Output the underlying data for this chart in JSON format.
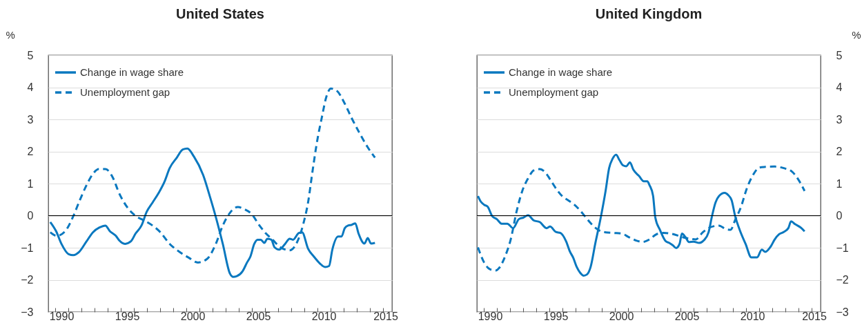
{
  "chart_data": [
    {
      "type": "line",
      "title": "United States",
      "ylabel": "%",
      "xlim": [
        1989.5,
        2015.7
      ],
      "ylim": [
        -3,
        5
      ],
      "yticks": [
        -3,
        -2,
        -1,
        0,
        1,
        2,
        3,
        4,
        5
      ],
      "xticks": [
        {
          "value": 1990,
          "label": null
        },
        {
          "value": 1991,
          "label": null
        },
        {
          "value": 1992,
          "label": null
        },
        {
          "value": 1993,
          "label": null
        },
        {
          "value": 1994,
          "label": null
        },
        {
          "value": 1995,
          "label": null
        },
        {
          "value": 1996,
          "label": null
        },
        {
          "value": 1997,
          "label": null
        },
        {
          "value": 1998,
          "label": null
        },
        {
          "value": 1999,
          "label": null
        },
        {
          "value": 2000,
          "label": null
        },
        {
          "value": 2001,
          "label": null
        },
        {
          "value": 2002,
          "label": null
        },
        {
          "value": 2003,
          "label": null
        },
        {
          "value": 2004,
          "label": null
        },
        {
          "value": 2005,
          "label": null
        },
        {
          "value": 2006,
          "label": null
        },
        {
          "value": 2007,
          "label": null
        },
        {
          "value": 2008,
          "label": null
        },
        {
          "value": 2009,
          "label": null
        },
        {
          "value": 2010,
          "label": null
        },
        {
          "value": 2011,
          "label": null
        },
        {
          "value": 2012,
          "label": null
        },
        {
          "value": 2013,
          "label": null
        },
        {
          "value": 2014,
          "label": null
        },
        {
          "value": 2015,
          "label": null
        },
        {
          "value": 1990.5,
          "label": "1990"
        },
        {
          "value": 1995.5,
          "label": "1995"
        },
        {
          "value": 2000.5,
          "label": "2000"
        },
        {
          "value": 2005.5,
          "label": "2005"
        },
        {
          "value": 2010.5,
          "label": "2010"
        },
        {
          "value": 2015.2,
          "label": "2015"
        }
      ],
      "grid": "y",
      "legend": "top left",
      "ref_lines": [
        {
          "axis": "y",
          "value": 0,
          "color": "#000000"
        }
      ],
      "series": [
        {
          "name": "Change in wage share",
          "color": "#0a78bf",
          "line_style": "solid",
          "x": [
            1989.65,
            1990.1,
            1990.5,
            1991.05,
            1991.4,
            1991.85,
            1992.4,
            1992.9,
            1993.4,
            1993.85,
            1994.2,
            1994.65,
            1994.9,
            1995.35,
            1995.8,
            1996.15,
            1996.6,
            1997.0,
            1997.45,
            1997.9,
            1998.35,
            1998.75,
            1999.3,
            1999.75,
            2000.1,
            2000.6,
            2001.3,
            2001.85,
            2002.3,
            2002.8,
            2003.35,
            2003.6,
            2003.85,
            2004.3,
            2004.65,
            2004.9,
            2005.2,
            2005.45,
            2005.7,
            2005.96,
            2006.2,
            2006.5,
            2006.75,
            2007.1,
            2007.55,
            2007.9,
            2008.15,
            2008.6,
            2008.85,
            2009.3,
            2009.75,
            2010.2,
            2010.6,
            2010.9,
            2011.15,
            2011.6,
            2011.85,
            2012.1,
            2012.35,
            2012.6,
            2012.9,
            2013.15,
            2013.6,
            2013.85,
            2014.1,
            2014.4
          ],
          "values": [
            -0.2,
            -0.49,
            -0.88,
            -1.2,
            -1.23,
            -1.13,
            -0.81,
            -0.52,
            -0.37,
            -0.31,
            -0.49,
            -0.63,
            -0.77,
            -0.88,
            -0.8,
            -0.56,
            -0.31,
            0.12,
            0.41,
            0.7,
            1.05,
            1.48,
            1.81,
            2.06,
            2.09,
            1.84,
            1.27,
            0.55,
            -0.09,
            -0.88,
            -1.81,
            -1.91,
            -1.89,
            -1.74,
            -1.46,
            -1.28,
            -0.88,
            -0.75,
            -0.75,
            -0.85,
            -0.72,
            -0.75,
            -0.99,
            -1.06,
            -0.88,
            -0.72,
            -0.75,
            -0.54,
            -0.52,
            -1.03,
            -1.28,
            -1.49,
            -1.6,
            -1.57,
            -1.06,
            -0.65,
            -0.65,
            -0.39,
            -0.31,
            -0.29,
            -0.24,
            -0.56,
            -0.87,
            -0.7,
            -0.87,
            -0.85
          ]
        },
        {
          "name": "Unemployment gap",
          "color": "#0a78bf",
          "line_style": "dashed",
          "x": [
            1989.65,
            1990.15,
            1990.85,
            1991.4,
            1991.9,
            1992.45,
            1992.9,
            1993.35,
            1993.85,
            1994.4,
            1994.9,
            1995.5,
            1996.1,
            1996.85,
            1997.45,
            1998.05,
            1998.75,
            1999.5,
            2000.2,
            2000.9,
            2001.6,
            2002.3,
            2002.8,
            2003.35,
            2003.95,
            2004.4,
            2005.0,
            2005.6,
            2006.1,
            2006.6,
            2007.2,
            2007.9,
            2008.4,
            2008.95,
            2009.3,
            2009.65,
            2010.0,
            2010.35,
            2010.7,
            2011.05,
            2011.5,
            2012.1,
            2012.6,
            2013.15,
            2013.85,
            2014.4
          ],
          "values": [
            -0.52,
            -0.63,
            -0.45,
            -0.02,
            0.48,
            0.98,
            1.3,
            1.45,
            1.45,
            1.2,
            0.7,
            0.27,
            0.01,
            -0.16,
            -0.31,
            -0.52,
            -0.88,
            -1.13,
            -1.31,
            -1.46,
            -1.35,
            -0.85,
            -0.31,
            0.09,
            0.27,
            0.21,
            0.05,
            -0.31,
            -0.56,
            -0.75,
            -0.99,
            -1.08,
            -0.88,
            -0.24,
            0.41,
            1.41,
            2.34,
            3.06,
            3.71,
            3.96,
            3.89,
            3.49,
            3.06,
            2.63,
            2.13,
            1.81
          ]
        }
      ]
    },
    {
      "type": "line",
      "title": "United Kingdom",
      "ylabel": "%",
      "xlim": [
        1989.5,
        2015.7
      ],
      "ylim": [
        -3,
        5
      ],
      "yticks": [
        -3,
        -2,
        -1,
        0,
        1,
        2,
        3,
        4,
        5
      ],
      "xticks": [
        {
          "value": 1990,
          "label": null
        },
        {
          "value": 1991,
          "label": null
        },
        {
          "value": 1992,
          "label": null
        },
        {
          "value": 1993,
          "label": null
        },
        {
          "value": 1994,
          "label": null
        },
        {
          "value": 1995,
          "label": null
        },
        {
          "value": 1996,
          "label": null
        },
        {
          "value": 1997,
          "label": null
        },
        {
          "value": 1998,
          "label": null
        },
        {
          "value": 1999,
          "label": null
        },
        {
          "value": 2000,
          "label": null
        },
        {
          "value": 2001,
          "label": null
        },
        {
          "value": 2002,
          "label": null
        },
        {
          "value": 2003,
          "label": null
        },
        {
          "value": 2004,
          "label": null
        },
        {
          "value": 2005,
          "label": null
        },
        {
          "value": 2006,
          "label": null
        },
        {
          "value": 2007,
          "label": null
        },
        {
          "value": 2008,
          "label": null
        },
        {
          "value": 2009,
          "label": null
        },
        {
          "value": 2010,
          "label": null
        },
        {
          "value": 2011,
          "label": null
        },
        {
          "value": 2012,
          "label": null
        },
        {
          "value": 2013,
          "label": null
        },
        {
          "value": 2014,
          "label": null
        },
        {
          "value": 2015,
          "label": null
        },
        {
          "value": 1990.5,
          "label": "1990"
        },
        {
          "value": 1995.5,
          "label": "1995"
        },
        {
          "value": 2000.5,
          "label": "2000"
        },
        {
          "value": 2005.5,
          "label": "2005"
        },
        {
          "value": 2010.5,
          "label": "2010"
        },
        {
          "value": 2015.2,
          "label": "2015"
        }
      ],
      "grid": "y",
      "legend": "top left",
      "ref_lines": [
        {
          "axis": "y",
          "value": 0,
          "color": "#000000"
        }
      ],
      "series": [
        {
          "name": "Change in wage share",
          "color": "#0a78bf",
          "line_style": "solid",
          "x": [
            1989.58,
            1989.79,
            1990.05,
            1990.32,
            1990.67,
            1991.02,
            1991.38,
            1991.82,
            1992.26,
            1992.7,
            1993.05,
            1993.4,
            1993.84,
            1994.29,
            1994.81,
            1995.08,
            1995.52,
            1995.87,
            1996.31,
            1996.58,
            1996.84,
            1997.11,
            1997.37,
            1997.64,
            1997.9,
            1998.17,
            1998.52,
            1998.96,
            1999.31,
            1999.58,
            1999.84,
            2000.11,
            2000.37,
            2000.63,
            2000.9,
            2001.16,
            2001.43,
            2001.87,
            2002.22,
            2002.49,
            2002.66,
            2002.93,
            2003.1,
            2003.46,
            2003.9,
            2004.16,
            2004.42,
            2004.69,
            2004.95,
            2005.13,
            2005.4,
            2005.66,
            2006.01,
            2006.45,
            2006.8,
            2007.16,
            2007.42,
            2007.69,
            2007.95,
            2008.39,
            2008.66,
            2008.92,
            2009.19,
            2009.54,
            2009.98,
            2010.42,
            2010.86,
            2011.22,
            2011.48,
            2011.92,
            2012.19,
            2012.54,
            2012.89,
            2013.24,
            2013.45,
            2013.77,
            2014.21,
            2014.48
          ],
          "values": [
            0.61,
            0.44,
            0.34,
            0.28,
            -0.02,
            -0.11,
            -0.25,
            -0.25,
            -0.39,
            -0.11,
            -0.06,
            0.01,
            -0.15,
            -0.2,
            -0.39,
            -0.34,
            -0.51,
            -0.54,
            -0.81,
            -1.11,
            -1.31,
            -1.6,
            -1.78,
            -1.87,
            -1.83,
            -1.6,
            -0.88,
            -0.02,
            0.77,
            1.48,
            1.77,
            1.9,
            1.73,
            1.57,
            1.54,
            1.66,
            1.43,
            1.23,
            1.07,
            1.07,
            0.95,
            0.62,
            -0.06,
            -0.45,
            -0.8,
            -0.85,
            -0.92,
            -1.01,
            -0.88,
            -0.56,
            -0.67,
            -0.82,
            -0.81,
            -0.85,
            -0.77,
            -0.52,
            -0.02,
            0.41,
            0.61,
            0.71,
            0.64,
            0.48,
            -0.02,
            -0.45,
            -0.88,
            -1.3,
            -1.3,
            -1.06,
            -1.13,
            -0.95,
            -0.75,
            -0.58,
            -0.51,
            -0.39,
            -0.18,
            -0.27,
            -0.38,
            -0.49
          ]
        },
        {
          "name": "Unemployment gap",
          "color": "#0a78bf",
          "line_style": "dashed",
          "x": [
            1989.58,
            1990.05,
            1990.49,
            1990.93,
            1991.2,
            1991.64,
            1992.08,
            1992.52,
            1992.96,
            1993.4,
            1993.84,
            1994.29,
            1994.73,
            1995.17,
            1995.61,
            1996.05,
            1996.49,
            1996.93,
            1997.37,
            1997.81,
            1998.25,
            1998.78,
            1999.31,
            1999.93,
            2000.55,
            2001.08,
            2001.6,
            2002.13,
            2002.66,
            2003.19,
            2003.72,
            2004.25,
            2005.48,
            2006.19,
            2006.72,
            2007.25,
            2007.95,
            2008.48,
            2008.84,
            2009.19,
            2009.63,
            2010.07,
            2010.5,
            2011.04,
            2011.48,
            2012.19,
            2012.89,
            2013.5,
            2013.95,
            2014.48
          ],
          "values": [
            -0.99,
            -1.46,
            -1.67,
            -1.71,
            -1.63,
            -1.28,
            -0.74,
            0.12,
            0.77,
            1.16,
            1.41,
            1.45,
            1.34,
            1.07,
            0.8,
            0.59,
            0.47,
            0.34,
            0.16,
            -0.06,
            -0.27,
            -0.45,
            -0.52,
            -0.54,
            -0.56,
            -0.67,
            -0.77,
            -0.82,
            -0.74,
            -0.58,
            -0.54,
            -0.56,
            -0.7,
            -0.74,
            -0.52,
            -0.37,
            -0.31,
            -0.42,
            -0.44,
            -0.13,
            0.27,
            0.84,
            1.23,
            1.5,
            1.52,
            1.53,
            1.48,
            1.38,
            1.16,
            0.77
          ]
        }
      ]
    }
  ]
}
